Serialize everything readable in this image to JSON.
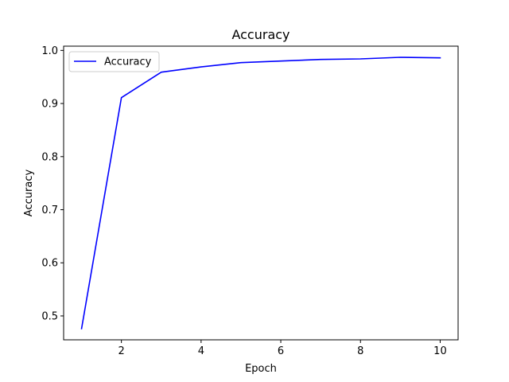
{
  "chart_data": {
    "type": "line",
    "title": "Accuracy",
    "xlabel": "Epoch",
    "ylabel": "Accuracy",
    "xlim": [
      0.55,
      10.45
    ],
    "ylim": [
      0.455,
      1.008
    ],
    "xticks": [
      2,
      4,
      6,
      8,
      10
    ],
    "yticks": [
      0.5,
      0.6,
      0.7,
      0.8,
      0.9,
      1.0
    ],
    "ytick_labels": [
      "0.5",
      "0.6",
      "0.7",
      "0.8",
      "0.9",
      "1.0"
    ],
    "grid": false,
    "legend_position": "top-left",
    "x": [
      1,
      2,
      3,
      4,
      5,
      6,
      7,
      8,
      9,
      10
    ],
    "series": [
      {
        "name": "Accuracy",
        "color": "#0000ff",
        "values": [
          0.476,
          0.911,
          0.959,
          0.969,
          0.977,
          0.98,
          0.983,
          0.984,
          0.987,
          0.986
        ]
      }
    ]
  }
}
